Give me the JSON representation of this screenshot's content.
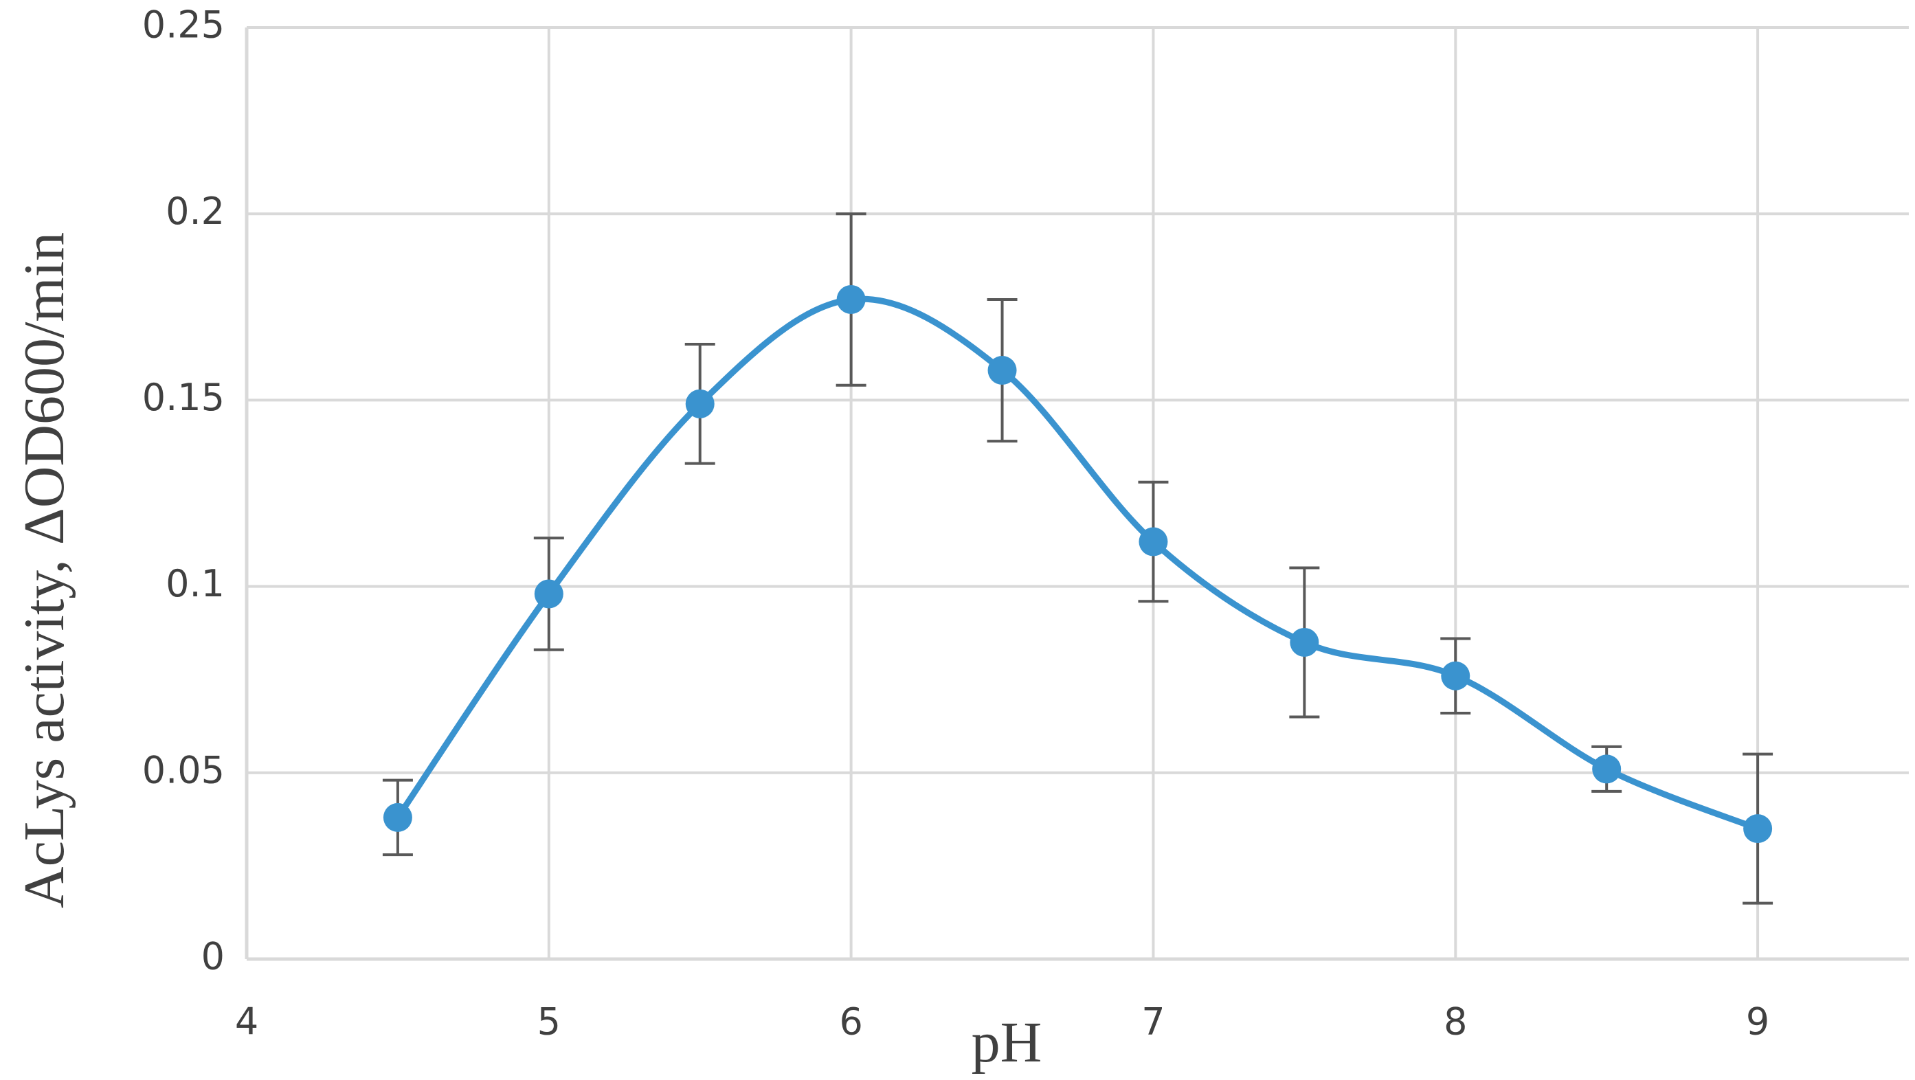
{
  "chart_data": {
    "type": "line",
    "x_label": "pH",
    "y_label": "AcLys activity, ΔOD600/min",
    "x": [
      4.5,
      5,
      5.5,
      6,
      6.5,
      7,
      7.5,
      8,
      8.5,
      9
    ],
    "series": [
      {
        "color": "#3a93cf",
        "error_color": "#595959",
        "values": [
          0.038,
          0.098,
          0.149,
          0.177,
          0.158,
          0.112,
          0.085,
          0.076,
          0.051,
          0.035
        ],
        "errors": [
          0.01,
          0.015,
          0.016,
          0.023,
          0.019,
          0.016,
          0.02,
          0.01,
          0.006,
          0.02
        ]
      }
    ],
    "xlim": [
      4,
      9.5
    ],
    "xticks": [
      4,
      5,
      6,
      7,
      8,
      9
    ],
    "ylim": [
      0,
      0.25
    ],
    "yticks": [
      0,
      0.05,
      0.1,
      0.15,
      0.2,
      0.25
    ],
    "grid": true,
    "smooth": true
  }
}
